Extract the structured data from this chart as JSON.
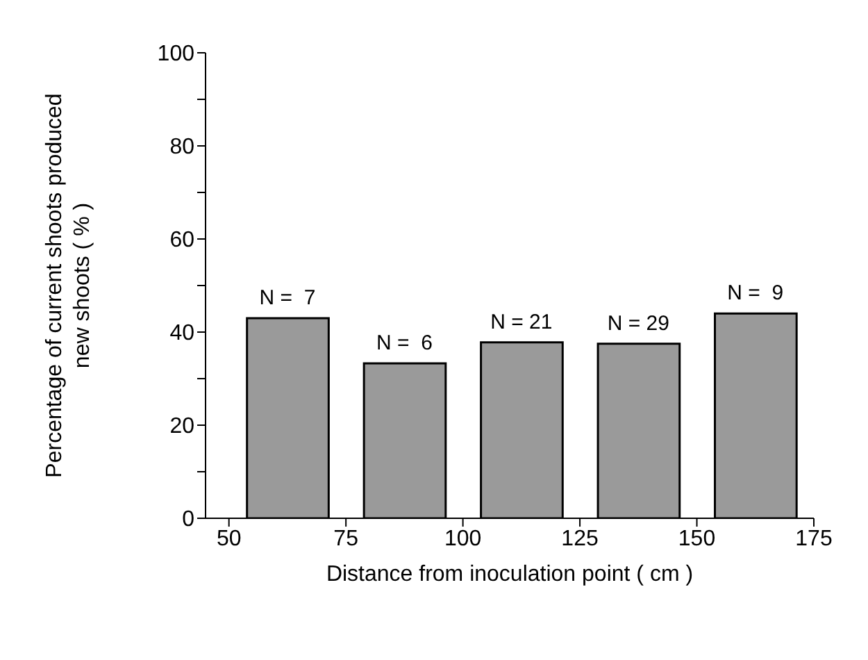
{
  "chart_data": {
    "type": "bar",
    "xlabel": "Distance from inoculation point ( cm )",
    "ylabel": "Percentage of current shoots produced new shoots ( % )",
    "x": [
      62.5,
      87.5,
      112.5,
      137.5,
      162.5
    ],
    "values": [
      43,
      33.3,
      37.8,
      37.5,
      44
    ],
    "annotations": [
      {
        "text": "N =  7",
        "x": 62.5,
        "y": 43
      },
      {
        "text": "N =  6",
        "x": 87.5,
        "y": 33.3
      },
      {
        "text": "N = 21",
        "x": 112.5,
        "y": 37.8
      },
      {
        "text": "N = 29",
        "x": 137.5,
        "y": 37.5
      },
      {
        "text": "N =  9",
        "x": 162.5,
        "y": 44
      }
    ],
    "color": "#9a9a9a",
    "xlim": [
      45,
      175
    ],
    "xticks": [
      50,
      75,
      100,
      125,
      150,
      175
    ],
    "ylim": [
      0,
      100
    ],
    "yticks": [
      0,
      {
        "value": 10,
        "label": null
      },
      20,
      {
        "value": 30,
        "label": null
      },
      40,
      {
        "value": 50,
        "label": null
      },
      60,
      {
        "value": 70,
        "label": null
      },
      80,
      {
        "value": 90,
        "label": null
      },
      100
    ],
    "grid": false,
    "legend": false
  }
}
